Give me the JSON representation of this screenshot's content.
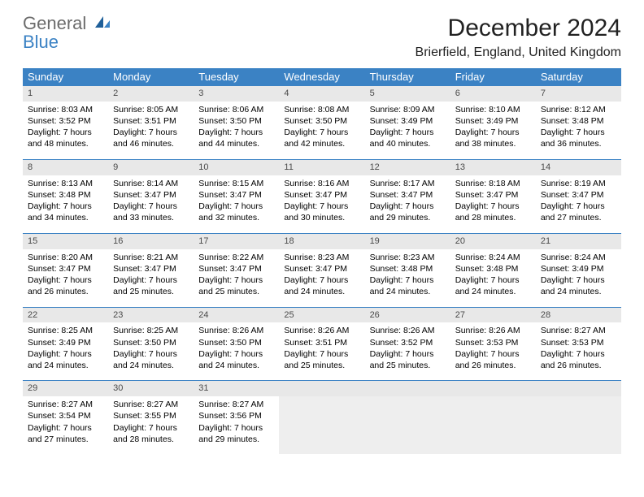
{
  "logo": {
    "general": "General",
    "blue": "Blue"
  },
  "title": "December 2024",
  "location": "Brierfield, England, United Kingdom",
  "colors": {
    "header_bg": "#3b82c4",
    "header_fg": "#ffffff",
    "daynum_bg": "#e8e8e8",
    "daynum_fg": "#4a4a4a",
    "rule": "#3b82c4",
    "empty_bg": "#eeeeee"
  },
  "days_of_week": [
    "Sunday",
    "Monday",
    "Tuesday",
    "Wednesday",
    "Thursday",
    "Friday",
    "Saturday"
  ],
  "weeks": [
    [
      {
        "n": "1",
        "sunrise": "Sunrise: 8:03 AM",
        "sunset": "Sunset: 3:52 PM",
        "dl1": "Daylight: 7 hours",
        "dl2": "and 48 minutes."
      },
      {
        "n": "2",
        "sunrise": "Sunrise: 8:05 AM",
        "sunset": "Sunset: 3:51 PM",
        "dl1": "Daylight: 7 hours",
        "dl2": "and 46 minutes."
      },
      {
        "n": "3",
        "sunrise": "Sunrise: 8:06 AM",
        "sunset": "Sunset: 3:50 PM",
        "dl1": "Daylight: 7 hours",
        "dl2": "and 44 minutes."
      },
      {
        "n": "4",
        "sunrise": "Sunrise: 8:08 AM",
        "sunset": "Sunset: 3:50 PM",
        "dl1": "Daylight: 7 hours",
        "dl2": "and 42 minutes."
      },
      {
        "n": "5",
        "sunrise": "Sunrise: 8:09 AM",
        "sunset": "Sunset: 3:49 PM",
        "dl1": "Daylight: 7 hours",
        "dl2": "and 40 minutes."
      },
      {
        "n": "6",
        "sunrise": "Sunrise: 8:10 AM",
        "sunset": "Sunset: 3:49 PM",
        "dl1": "Daylight: 7 hours",
        "dl2": "and 38 minutes."
      },
      {
        "n": "7",
        "sunrise": "Sunrise: 8:12 AM",
        "sunset": "Sunset: 3:48 PM",
        "dl1": "Daylight: 7 hours",
        "dl2": "and 36 minutes."
      }
    ],
    [
      {
        "n": "8",
        "sunrise": "Sunrise: 8:13 AM",
        "sunset": "Sunset: 3:48 PM",
        "dl1": "Daylight: 7 hours",
        "dl2": "and 34 minutes."
      },
      {
        "n": "9",
        "sunrise": "Sunrise: 8:14 AM",
        "sunset": "Sunset: 3:47 PM",
        "dl1": "Daylight: 7 hours",
        "dl2": "and 33 minutes."
      },
      {
        "n": "10",
        "sunrise": "Sunrise: 8:15 AM",
        "sunset": "Sunset: 3:47 PM",
        "dl1": "Daylight: 7 hours",
        "dl2": "and 32 minutes."
      },
      {
        "n": "11",
        "sunrise": "Sunrise: 8:16 AM",
        "sunset": "Sunset: 3:47 PM",
        "dl1": "Daylight: 7 hours",
        "dl2": "and 30 minutes."
      },
      {
        "n": "12",
        "sunrise": "Sunrise: 8:17 AM",
        "sunset": "Sunset: 3:47 PM",
        "dl1": "Daylight: 7 hours",
        "dl2": "and 29 minutes."
      },
      {
        "n": "13",
        "sunrise": "Sunrise: 8:18 AM",
        "sunset": "Sunset: 3:47 PM",
        "dl1": "Daylight: 7 hours",
        "dl2": "and 28 minutes."
      },
      {
        "n": "14",
        "sunrise": "Sunrise: 8:19 AM",
        "sunset": "Sunset: 3:47 PM",
        "dl1": "Daylight: 7 hours",
        "dl2": "and 27 minutes."
      }
    ],
    [
      {
        "n": "15",
        "sunrise": "Sunrise: 8:20 AM",
        "sunset": "Sunset: 3:47 PM",
        "dl1": "Daylight: 7 hours",
        "dl2": "and 26 minutes."
      },
      {
        "n": "16",
        "sunrise": "Sunrise: 8:21 AM",
        "sunset": "Sunset: 3:47 PM",
        "dl1": "Daylight: 7 hours",
        "dl2": "and 25 minutes."
      },
      {
        "n": "17",
        "sunrise": "Sunrise: 8:22 AM",
        "sunset": "Sunset: 3:47 PM",
        "dl1": "Daylight: 7 hours",
        "dl2": "and 25 minutes."
      },
      {
        "n": "18",
        "sunrise": "Sunrise: 8:23 AM",
        "sunset": "Sunset: 3:47 PM",
        "dl1": "Daylight: 7 hours",
        "dl2": "and 24 minutes."
      },
      {
        "n": "19",
        "sunrise": "Sunrise: 8:23 AM",
        "sunset": "Sunset: 3:48 PM",
        "dl1": "Daylight: 7 hours",
        "dl2": "and 24 minutes."
      },
      {
        "n": "20",
        "sunrise": "Sunrise: 8:24 AM",
        "sunset": "Sunset: 3:48 PM",
        "dl1": "Daylight: 7 hours",
        "dl2": "and 24 minutes."
      },
      {
        "n": "21",
        "sunrise": "Sunrise: 8:24 AM",
        "sunset": "Sunset: 3:49 PM",
        "dl1": "Daylight: 7 hours",
        "dl2": "and 24 minutes."
      }
    ],
    [
      {
        "n": "22",
        "sunrise": "Sunrise: 8:25 AM",
        "sunset": "Sunset: 3:49 PM",
        "dl1": "Daylight: 7 hours",
        "dl2": "and 24 minutes."
      },
      {
        "n": "23",
        "sunrise": "Sunrise: 8:25 AM",
        "sunset": "Sunset: 3:50 PM",
        "dl1": "Daylight: 7 hours",
        "dl2": "and 24 minutes."
      },
      {
        "n": "24",
        "sunrise": "Sunrise: 8:26 AM",
        "sunset": "Sunset: 3:50 PM",
        "dl1": "Daylight: 7 hours",
        "dl2": "and 24 minutes."
      },
      {
        "n": "25",
        "sunrise": "Sunrise: 8:26 AM",
        "sunset": "Sunset: 3:51 PM",
        "dl1": "Daylight: 7 hours",
        "dl2": "and 25 minutes."
      },
      {
        "n": "26",
        "sunrise": "Sunrise: 8:26 AM",
        "sunset": "Sunset: 3:52 PM",
        "dl1": "Daylight: 7 hours",
        "dl2": "and 25 minutes."
      },
      {
        "n": "27",
        "sunrise": "Sunrise: 8:26 AM",
        "sunset": "Sunset: 3:53 PM",
        "dl1": "Daylight: 7 hours",
        "dl2": "and 26 minutes."
      },
      {
        "n": "28",
        "sunrise": "Sunrise: 8:27 AM",
        "sunset": "Sunset: 3:53 PM",
        "dl1": "Daylight: 7 hours",
        "dl2": "and 26 minutes."
      }
    ],
    [
      {
        "n": "29",
        "sunrise": "Sunrise: 8:27 AM",
        "sunset": "Sunset: 3:54 PM",
        "dl1": "Daylight: 7 hours",
        "dl2": "and 27 minutes."
      },
      {
        "n": "30",
        "sunrise": "Sunrise: 8:27 AM",
        "sunset": "Sunset: 3:55 PM",
        "dl1": "Daylight: 7 hours",
        "dl2": "and 28 minutes."
      },
      {
        "n": "31",
        "sunrise": "Sunrise: 8:27 AM",
        "sunset": "Sunset: 3:56 PM",
        "dl1": "Daylight: 7 hours",
        "dl2": "and 29 minutes."
      },
      {
        "empty": true
      },
      {
        "empty": true
      },
      {
        "empty": true
      },
      {
        "empty": true
      }
    ]
  ]
}
